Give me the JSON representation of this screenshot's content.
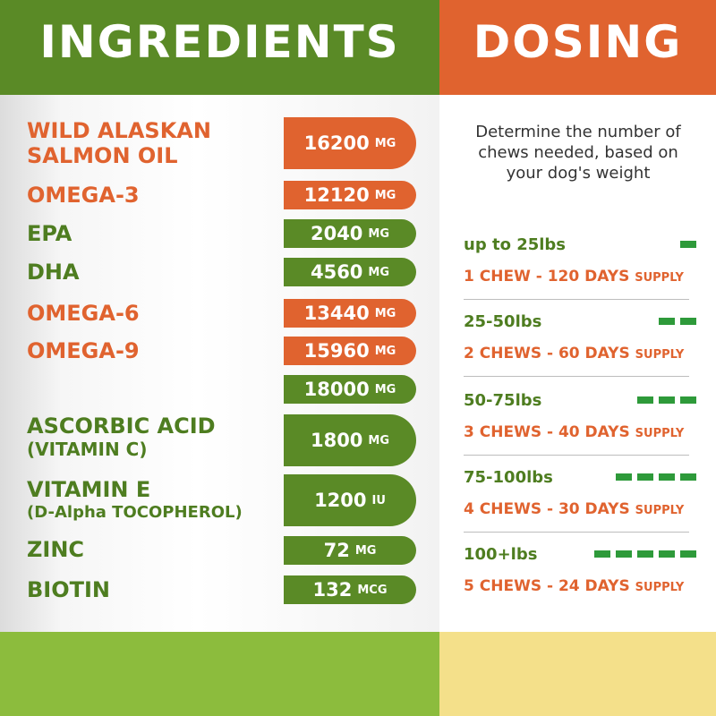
{
  "ingredients": {
    "title": "INGREDIENTS",
    "items": [
      {
        "name": "WILD ALASKAN",
        "name2": "SALMON OIL",
        "amount": "16200",
        "unit": "MG"
      },
      {
        "name": "OMEGA-3",
        "amount": "12120",
        "unit": "MG"
      },
      {
        "name": "EPA",
        "amount": "2040",
        "unit": "MG"
      },
      {
        "name": "DHA",
        "amount": "4560",
        "unit": "MG"
      },
      {
        "name": "OMEGA-6",
        "amount": "13440",
        "unit": "MG"
      },
      {
        "name": "OMEGA-9",
        "amount": "15960",
        "unit": "MG"
      },
      {
        "name": "",
        "amount": "18000",
        "unit": "MG"
      },
      {
        "name": "ASCORBIC ACID",
        "name2": "(VITAMIN C)",
        "amount": "1800",
        "unit": "MG"
      },
      {
        "name": "VITAMIN E",
        "name2": "(D-Alpha TOCOPHEROL)",
        "amount": "1200",
        "unit": "IU"
      },
      {
        "name": "ZINC",
        "amount": "72",
        "unit": "MG"
      },
      {
        "name": "BIOTIN",
        "amount": "132",
        "unit": "MCG"
      }
    ]
  },
  "dosing": {
    "title": "DOSING",
    "intro": "Determine the number of chews needed, based on your dog's weight",
    "tiers": [
      {
        "weight": "up to 25lbs",
        "chews": "1 CHEW - 120 DAYS",
        "supply": "SUPPLY",
        "level": 1
      },
      {
        "weight": "25-50lbs",
        "chews": "2 CHEWS - 60 DAYS",
        "supply": "SUPPLY",
        "level": 2
      },
      {
        "weight": "50-75lbs",
        "chews": "3 CHEWS - 40 DAYS",
        "supply": "SUPPLY",
        "level": 3
      },
      {
        "weight": "75-100lbs",
        "chews": "4 CHEWS - 30 DAYS",
        "supply": "SUPPLY",
        "level": 4
      },
      {
        "weight": "100+lbs",
        "chews": "5 CHEWS - 24 DAYS",
        "supply": "SUPPLY",
        "level": 5
      }
    ]
  },
  "colors": {
    "green": "#5a8a26",
    "orange": "#e0632f",
    "light_green": "#8cbc3d",
    "light_yellow": "#f4e08a",
    "bar_green": "#2e9a3a"
  }
}
